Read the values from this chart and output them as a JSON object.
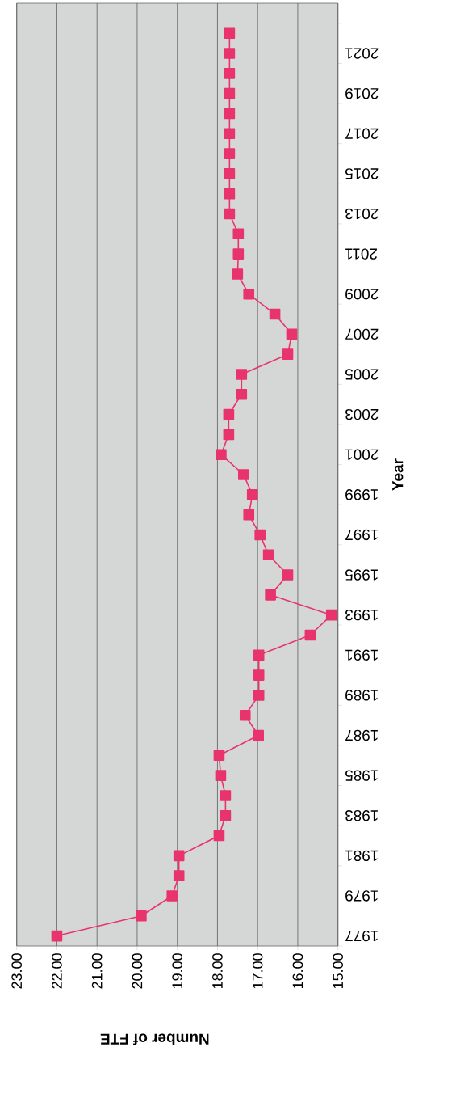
{
  "chart_data": {
    "type": "line",
    "orientation": "horizontal",
    "xlabel": "Number of FTE",
    "ylabel": "Year",
    "categories": [
      null,
      "2021",
      null,
      "2019",
      null,
      "2017",
      null,
      "2015",
      null,
      "2013",
      null,
      "2011",
      null,
      "2009",
      null,
      "2007",
      null,
      "2005",
      null,
      "2003",
      null,
      "2001",
      null,
      "1999",
      null,
      "1997",
      null,
      "1995",
      null,
      "1993",
      null,
      "1991",
      null,
      "1989",
      null,
      "1987",
      null,
      "1985",
      null,
      "1983",
      null,
      "1981",
      null,
      "1979",
      null,
      "1977"
    ],
    "series": [
      {
        "color": "#e8336d",
        "values": [
          17.7,
          17.7,
          17.7,
          17.7,
          17.7,
          17.7,
          17.7,
          17.7,
          17.7,
          17.7,
          17.48,
          17.48,
          17.5,
          17.22,
          16.57,
          16.15,
          16.25,
          17.4,
          17.4,
          17.72,
          17.72,
          17.91,
          17.35,
          17.13,
          17.22,
          16.94,
          16.73,
          16.25,
          16.68,
          15.16,
          15.69,
          16.97,
          16.97,
          16.97,
          17.31,
          16.98,
          17.96,
          17.92,
          17.8,
          17.8,
          17.96,
          18.96,
          18.96,
          19.13,
          19.9,
          22.0
        ]
      }
    ],
    "xlim": [
      23,
      15
    ],
    "xticks": [
      {
        "value": 23,
        "label": "23.00"
      },
      {
        "value": 22,
        "label": "22.00"
      },
      {
        "value": 21,
        "label": "21.00"
      },
      {
        "value": 20,
        "label": "20.00"
      },
      {
        "value": 19,
        "label": "19.00"
      },
      {
        "value": 18,
        "label": "18.00"
      },
      {
        "value": 17,
        "label": "17.00"
      },
      {
        "value": 16,
        "label": "16.00"
      },
      {
        "value": 15,
        "label": "15.00"
      }
    ],
    "grid": "x",
    "marker": "square",
    "line_style": "solid"
  }
}
